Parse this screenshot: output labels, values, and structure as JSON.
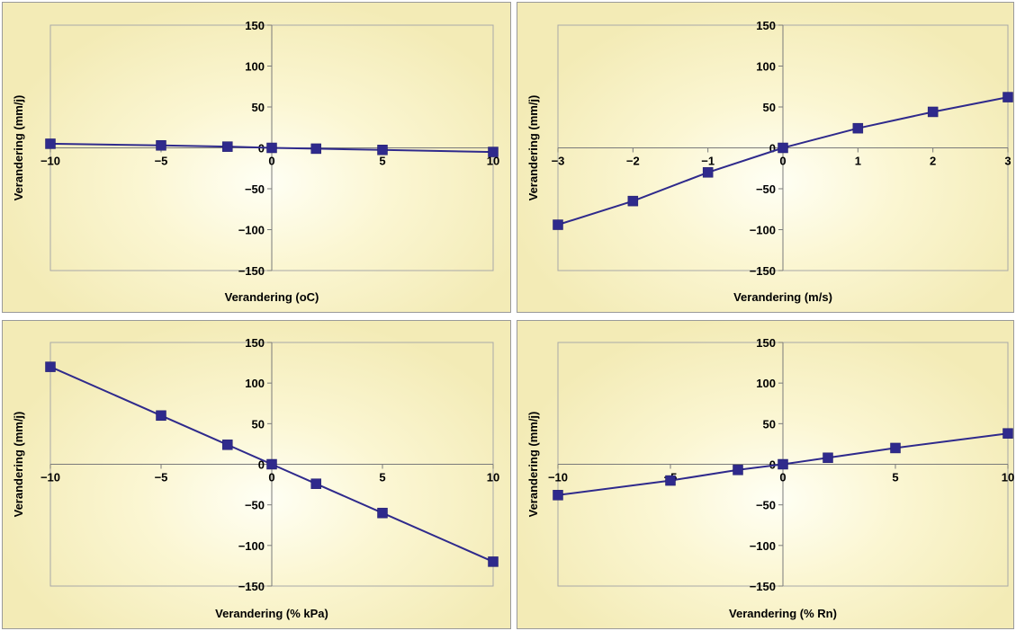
{
  "chart_data": [
    {
      "type": "line",
      "title": "",
      "xlabel": "Verandering (oC)",
      "ylabel": "Verandering (mm/j)",
      "xlim": [
        -10,
        10
      ],
      "ylim": [
        -150,
        150
      ],
      "xticks": [
        -10,
        -5,
        0,
        5,
        10
      ],
      "yticks": [
        -150,
        -100,
        -50,
        50,
        100,
        150
      ],
      "grid": false,
      "legend": "none",
      "color": "#2f2a8c",
      "x": [
        -10,
        -5,
        -2,
        0,
        2,
        5,
        10
      ],
      "y": [
        5,
        3,
        1.5,
        0,
        -1,
        -2.5,
        -5
      ]
    },
    {
      "type": "line",
      "title": "",
      "xlabel": "Verandering (m/s)",
      "ylabel": "Verandering (mm/j)",
      "xlim": [
        -3,
        3
      ],
      "ylim": [
        -150,
        150
      ],
      "xticks": [
        -3,
        -2,
        -1,
        0,
        1,
        2,
        3
      ],
      "yticks": [
        -150,
        -100,
        -50,
        50,
        100,
        150
      ],
      "grid": false,
      "legend": "none",
      "color": "#2f2a8c",
      "x": [
        -3,
        -2,
        -1,
        0,
        1,
        2,
        3
      ],
      "y": [
        -94,
        -65,
        -30,
        0,
        24,
        44,
        62
      ]
    },
    {
      "type": "line",
      "title": "",
      "xlabel": "Verandering (% kPa)",
      "ylabel": "Verandering (mm/j)",
      "xlim": [
        -10,
        10
      ],
      "ylim": [
        -150,
        150
      ],
      "xticks": [
        -10,
        -5,
        0,
        5,
        10
      ],
      "yticks": [
        -150,
        -100,
        -50,
        50,
        100,
        150
      ],
      "grid": false,
      "legend": "none",
      "color": "#2f2a8c",
      "x": [
        -10,
        -5,
        -2,
        0,
        2,
        5,
        10
      ],
      "y": [
        120,
        60,
        24,
        0,
        -24,
        -60,
        -120
      ]
    },
    {
      "type": "line",
      "title": "",
      "xlabel": "Verandering (% Rn)",
      "ylabel": "Verandering (mm/j)",
      "xlim": [
        -10,
        10
      ],
      "ylim": [
        -150,
        150
      ],
      "xticks": [
        -10,
        -5,
        0,
        5,
        10
      ],
      "yticks": [
        -150,
        -100,
        -50,
        50,
        100,
        150
      ],
      "grid": false,
      "legend": "none",
      "color": "#2f2a8c",
      "x": [
        -10,
        -5,
        -2,
        0,
        2,
        5,
        10
      ],
      "y": [
        -38,
        -20,
        -7,
        0,
        8,
        20,
        38
      ]
    }
  ]
}
